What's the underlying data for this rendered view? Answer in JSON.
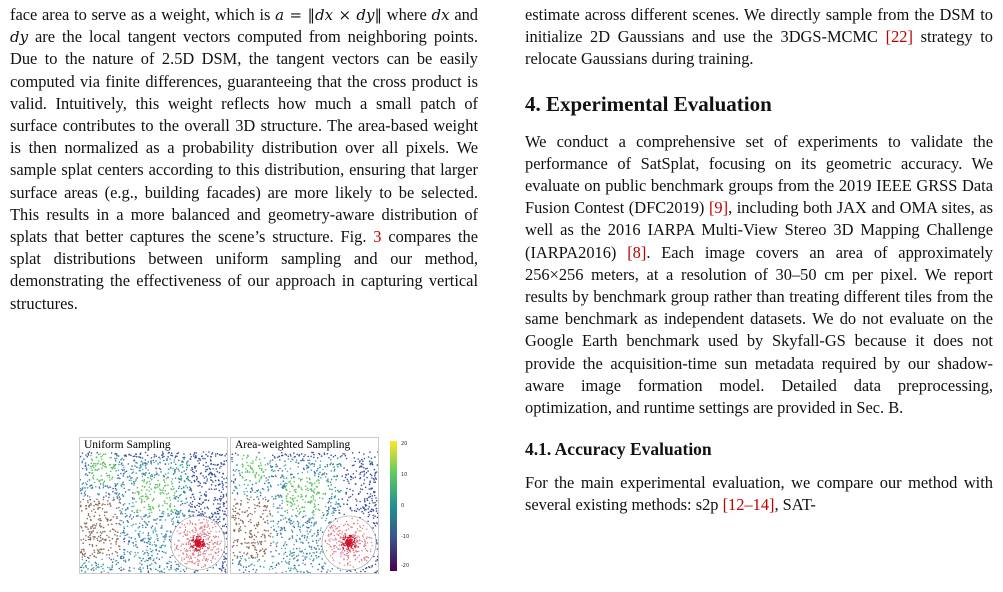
{
  "left_column": {
    "para1": {
      "segments": [
        {
          "t": "text",
          "v": "face area to serve as a weight, which is "
        },
        {
          "t": "math",
          "v": "a = ‖dx × dy‖"
        },
        {
          "t": "text",
          "v": " where "
        },
        {
          "t": "math",
          "v": "dx"
        },
        {
          "t": "text",
          "v": " and "
        },
        {
          "t": "math",
          "v": "dy"
        },
        {
          "t": "text",
          "v": " are the local tangent vectors computed from neighboring points. Due to the nature of 2.5D DSM, the tangent vectors can be easily computed via finite differences, guaranteeing that the cross product is valid. Intuitively, this weight reflects how much a small patch of surface contributes to the overall 3D structure. The area-based weight is then normalized as a probability distribution over all pixels. We sample splat centers according to this distribution, ensuring that larger surface areas (e.g., building facades) are more likely to be selected. This results in a more balanced and geometry-aware distribution of splats that better captures the scene’s structure. Fig. "
        },
        {
          "t": "ref",
          "v": "3"
        },
        {
          "t": "text",
          "v": " compares the splat distributions between uniform sampling and our method, demonstrating the effectiveness of our approach in capturing vertical structures."
        }
      ]
    },
    "figure": {
      "left_label": "Uniform Sampling",
      "right_label": "Area-weighted Sampling",
      "colorbar_ticks": [
        "20",
        "10",
        "0",
        "-10",
        "-20"
      ]
    }
  },
  "right_column": {
    "para0": {
      "segments": [
        {
          "t": "text",
          "v": "estimate across different scenes. We directly sample from the DSM to initialize 2D Gaussians and use the 3DGS-MCMC "
        },
        {
          "t": "cite",
          "v": "[22]"
        },
        {
          "t": "text",
          "v": " strategy to relocate Gaussians during training."
        }
      ]
    },
    "section_title": "4. Experimental Evaluation",
    "para1": {
      "segments": [
        {
          "t": "text",
          "v": "We conduct a comprehensive set of experiments to validate the performance of SatSplat, focusing on its geometric accuracy.  We evaluate on public benchmark groups from the 2019 IEEE GRSS Data Fusion Contest (DFC2019) "
        },
        {
          "t": "cite",
          "v": "[9]"
        },
        {
          "t": "text",
          "v": ", including both JAX and OMA sites, as well as the 2016 IARPA Multi-View Stereo 3D Mapping Challenge (IARPA2016) "
        },
        {
          "t": "cite",
          "v": "[8]"
        },
        {
          "t": "text",
          "v": ". Each image covers an area of approximately 256×256 meters, at a resolution of 30–50 cm per pixel. We report results by benchmark group rather than treating different tiles from the same benchmark as independent datasets. We do not evaluate on the Google Earth benchmark used by Skyfall-GS because it does not provide the acquisition-time sun metadata required by our shadow-aware image formation model. Detailed data preprocessing, optimization, and runtime settings are provided in Sec. B."
        }
      ]
    },
    "subsection_title": "4.1. Accuracy Evaluation",
    "para2": {
      "segments": [
        {
          "t": "text",
          "v": "For the main experimental evaluation, we compare our method with several existing methods: s2p "
        },
        {
          "t": "cite",
          "v": "[12–14]"
        },
        {
          "t": "text",
          "v": ", SAT-"
        }
      ]
    }
  }
}
